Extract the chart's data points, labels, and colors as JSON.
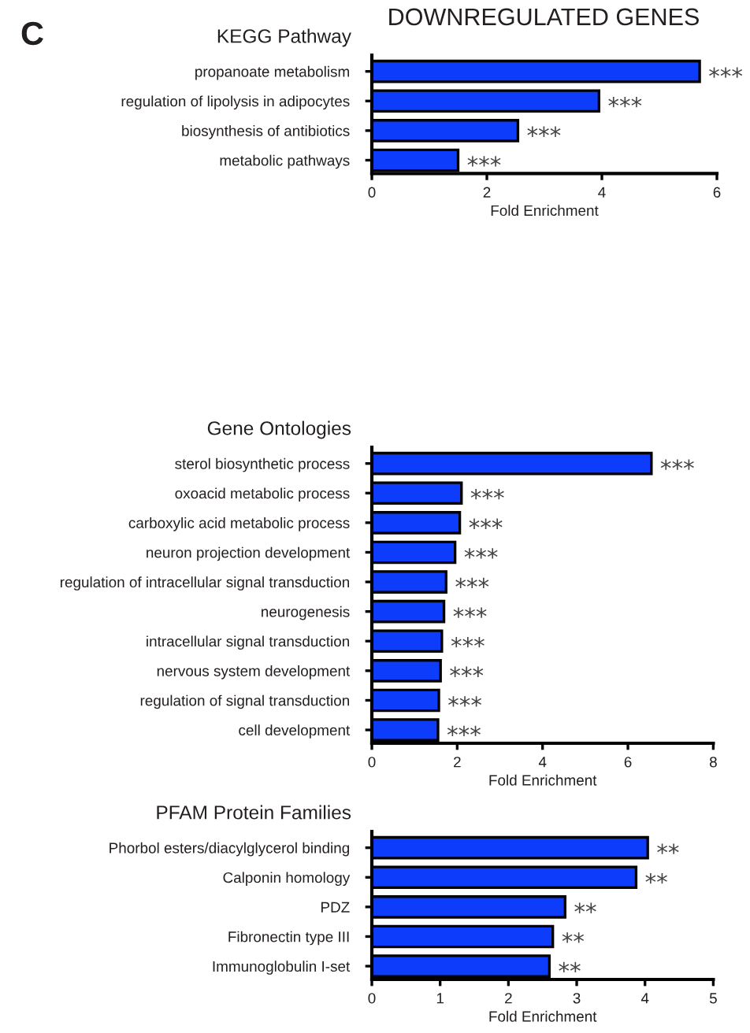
{
  "chart_data": [
    {
      "type": "bar",
      "orientation": "horizontal",
      "title": "KEGG Pathway",
      "xlabel": "Fold Enrichment",
      "categories": [
        "propanoate metabolism",
        "regulation of lipolysis in adipocytes",
        "biosynthesis of antibiotics",
        "metabolic pathways"
      ],
      "values": [
        5.7,
        3.95,
        2.54,
        1.5
      ],
      "color": "#0d3dfa",
      "xlim": [
        0,
        6
      ],
      "xticks": [
        0,
        2,
        4,
        6
      ],
      "annotations": [
        "C",
        "DOWNREGULATED GENES",
        {
          "text": "***",
          "x": 5.7,
          "y": "propanoate metabolism"
        },
        {
          "text": "***",
          "x": 3.95,
          "y": "regulation of lipolysis in adipocytes"
        },
        {
          "text": "***",
          "x": 2.54,
          "y": "biosynthesis of antibiotics"
        },
        {
          "text": "***",
          "x": 1.5,
          "y": "metabolic pathways"
        }
      ]
    },
    {
      "type": "bar",
      "orientation": "horizontal",
      "title": "Gene Ontologies",
      "xlabel": "Fold Enrichment",
      "categories": [
        "sterol biosynthetic process",
        "oxoacid metabolic process",
        "carboxylic acid metabolic process",
        "neuron projection development",
        "regulation of intracellular signal transduction",
        "neurogenesis",
        "intracellular signal transduction",
        "nervous system development",
        "regulation of signal transduction",
        "cell development"
      ],
      "values": [
        6.55,
        2.1,
        2.06,
        1.95,
        1.74,
        1.69,
        1.64,
        1.61,
        1.57,
        1.55
      ],
      "color": "#0d3dfa",
      "xlim": [
        0,
        8
      ],
      "xticks": [
        0,
        2,
        4,
        6,
        8
      ],
      "annotations": [
        {
          "text": "***",
          "x": 6.55,
          "y": "sterol biosynthetic process"
        },
        {
          "text": "***",
          "x": 2.1,
          "y": "oxoacid metabolic process"
        },
        {
          "text": "***",
          "x": 2.06,
          "y": "carboxylic acid metabolic process"
        },
        {
          "text": "***",
          "x": 1.95,
          "y": "neuron projection development"
        },
        {
          "text": "***",
          "x": 1.74,
          "y": "regulation of intracellular signal transduction"
        },
        {
          "text": "***",
          "x": 1.69,
          "y": "neurogenesis"
        },
        {
          "text": "***",
          "x": 1.64,
          "y": "intracellular signal transduction"
        },
        {
          "text": "***",
          "x": 1.61,
          "y": "nervous system development"
        },
        {
          "text": "***",
          "x": 1.57,
          "y": "regulation of signal transduction"
        },
        {
          "text": "***",
          "x": 1.55,
          "y": "cell development"
        }
      ]
    },
    {
      "type": "bar",
      "orientation": "horizontal",
      "title": "PFAM Protein Families",
      "xlabel": "Fold Enrichment",
      "categories": [
        "Phorbol esters/diacylglycerol binding",
        "Calponin homology",
        "PDZ",
        "Fibronectin type III",
        "Immunoglobulin I-set"
      ],
      "values": [
        4.04,
        3.87,
        2.83,
        2.65,
        2.6
      ],
      "color": "#0d3dfa",
      "xlim": [
        0,
        5
      ],
      "xticks": [
        0,
        1,
        2,
        3,
        4,
        5
      ],
      "annotations": [
        {
          "text": "**",
          "x": 4.04,
          "y": "Phorbol esters/diacylglycerol binding"
        },
        {
          "text": "**",
          "x": 3.87,
          "y": "Calponin homology"
        },
        {
          "text": "**",
          "x": 2.83,
          "y": "PDZ"
        },
        {
          "text": "**",
          "x": 2.65,
          "y": "Fibronectin type III"
        },
        {
          "text": "**",
          "x": 2.6,
          "y": "Immunoglobulin I-set"
        }
      ]
    }
  ]
}
